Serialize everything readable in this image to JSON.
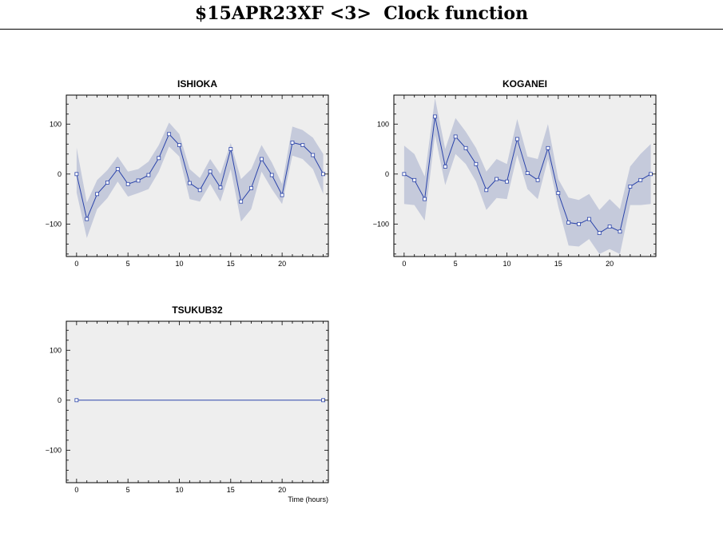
{
  "page": {
    "title": "$15APR23XF <3>  Clock function"
  },
  "colors": {
    "plot_bg": "#eeeeee",
    "band": "#c5cadb",
    "line": "#2b44aa"
  },
  "chart_data": [
    {
      "type": "line",
      "title": "ISHIOKA",
      "xlabel": "",
      "ylabel": "",
      "xlim": [
        -1,
        24.5
      ],
      "ylim": [
        -165,
        158
      ],
      "xticks": [
        0,
        5,
        10,
        15,
        20
      ],
      "yticks": [
        100,
        0,
        -100
      ],
      "series": [
        {
          "x": [
            0,
            1,
            2,
            3,
            4,
            5,
            6,
            7,
            8,
            9,
            10,
            11,
            12,
            13,
            14,
            15,
            16,
            17,
            18,
            19,
            20,
            21,
            22,
            23,
            24
          ],
          "y": [
            0,
            -90,
            -40,
            -17,
            10,
            -20,
            -13,
            -2,
            32,
            80,
            58,
            -18,
            -32,
            5,
            -27,
            50,
            -55,
            -28,
            30,
            -2,
            -42,
            63,
            58,
            38,
            0
          ],
          "lower": [
            -37,
            -128,
            -70,
            -48,
            -15,
            -45,
            -38,
            -30,
            5,
            55,
            35,
            -50,
            -55,
            -20,
            -55,
            10,
            -95,
            -70,
            5,
            -30,
            -60,
            37,
            30,
            10,
            -40
          ],
          "upper": [
            53,
            -57,
            -12,
            8,
            35,
            5,
            10,
            25,
            58,
            103,
            80,
            10,
            -8,
            30,
            0,
            62,
            -10,
            10,
            58,
            23,
            -20,
            95,
            88,
            73,
            40
          ]
        }
      ]
    },
    {
      "type": "line",
      "title": "KOGANEI",
      "xlabel": "",
      "ylabel": "",
      "xlim": [
        -1,
        24.5
      ],
      "ylim": [
        -165,
        158
      ],
      "xticks": [
        0,
        5,
        10,
        15,
        20
      ],
      "yticks": [
        100,
        0,
        -100
      ],
      "series": [
        {
          "x": [
            0,
            1,
            2,
            3,
            4,
            5,
            6,
            7,
            8,
            9,
            10,
            11,
            12,
            13,
            14,
            15,
            16,
            17,
            18,
            19,
            20,
            21,
            22,
            23,
            24
          ],
          "y": [
            0,
            -12,
            -50,
            115,
            15,
            75,
            52,
            20,
            -32,
            -10,
            -15,
            70,
            2,
            -12,
            52,
            -38,
            -97,
            -100,
            -90,
            -118,
            -105,
            -115,
            -25,
            -12,
            0
          ],
          "lower": [
            -60,
            -62,
            -93,
            78,
            -22,
            40,
            20,
            -15,
            -72,
            -48,
            -50,
            38,
            -30,
            -50,
            30,
            -65,
            -143,
            -145,
            -130,
            -160,
            -150,
            -160,
            -62,
            -62,
            -60
          ],
          "upper": [
            57,
            40,
            -5,
            152,
            50,
            112,
            85,
            52,
            5,
            30,
            20,
            110,
            35,
            30,
            100,
            -10,
            -47,
            -52,
            -40,
            -72,
            -50,
            -70,
            15,
            40,
            60
          ]
        }
      ]
    },
    {
      "type": "line",
      "title": "TSUKUB32",
      "xlabel": "Time (hours)",
      "ylabel": "",
      "xlim": [
        -1,
        24.5
      ],
      "ylim": [
        -165,
        158
      ],
      "xticks": [
        0,
        5,
        10,
        15,
        20
      ],
      "yticks": [
        100,
        0,
        -100
      ],
      "series": [
        {
          "x": [
            0,
            24
          ],
          "y": [
            0,
            0
          ],
          "lower": [
            0,
            0
          ],
          "upper": [
            0,
            0
          ]
        }
      ]
    }
  ]
}
